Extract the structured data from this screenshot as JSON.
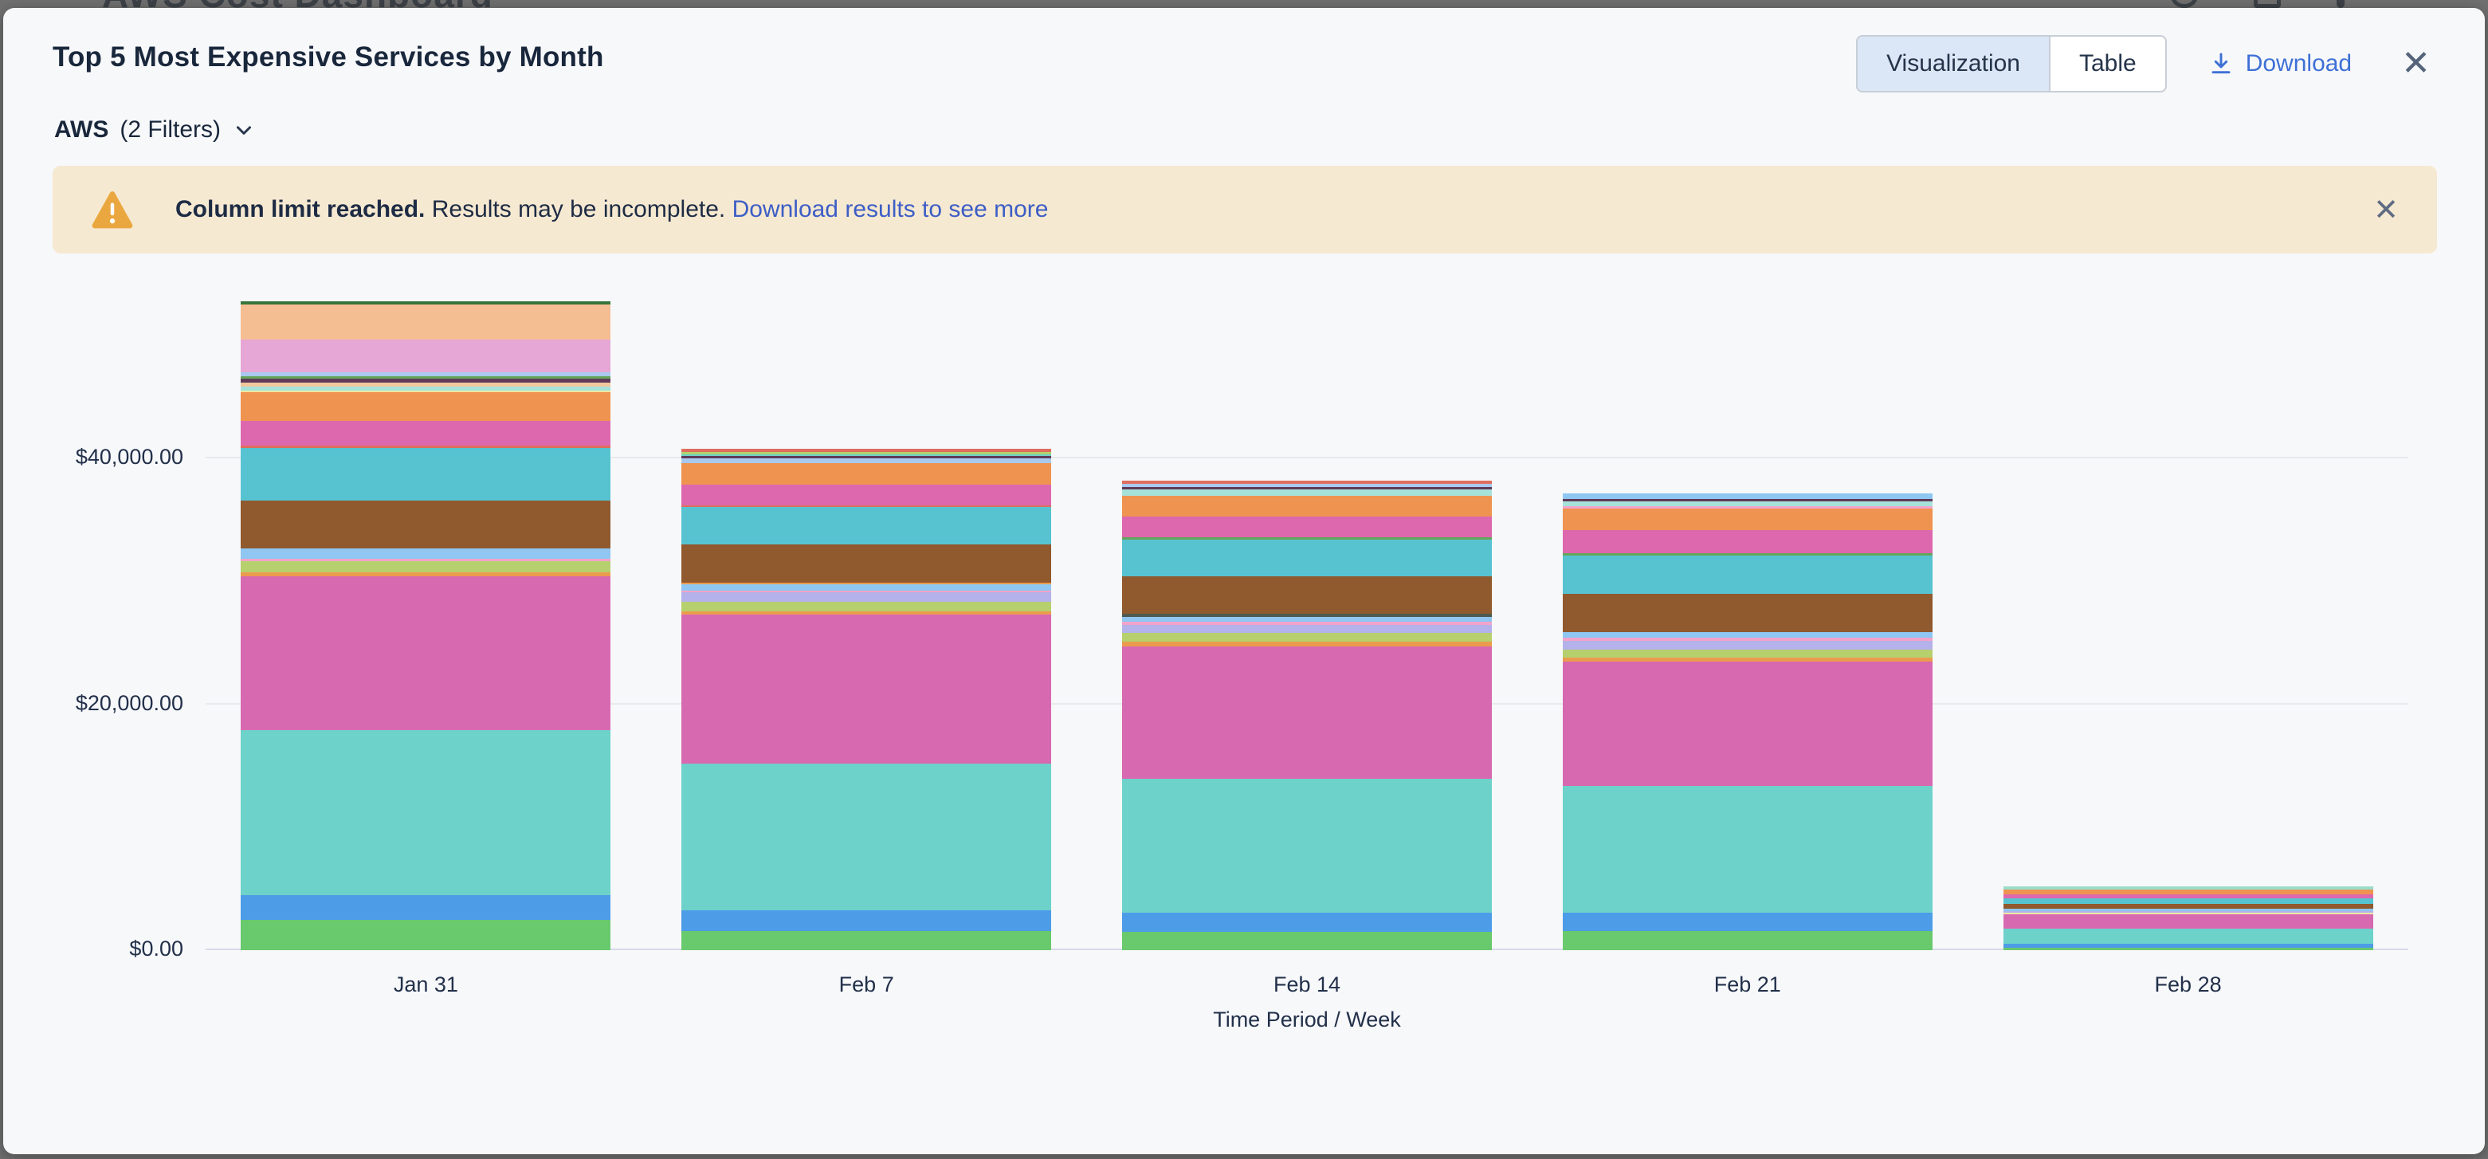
{
  "background": {
    "page_title": "AWS Cost Dashboard"
  },
  "modal": {
    "title": "Top 5 Most Expensive Services by Month",
    "view_toggle": {
      "options": [
        {
          "label": "Visualization",
          "selected": true
        },
        {
          "label": "Table",
          "selected": false
        }
      ]
    },
    "download_label": "Download",
    "filter": {
      "name": "AWS",
      "count_label": "(2 Filters)"
    },
    "banner": {
      "bold_text": "Column limit reached.",
      "text": "Results may be incomplete.",
      "link_text": "Download results to see more"
    }
  },
  "chart_data": {
    "type": "stacked-bar",
    "title": "Top 5 Most Expensive Services by Month",
    "xlabel": "Time Period / Week",
    "ylabel": "",
    "y_axis": {
      "ticks": [
        {
          "value": 0,
          "label": "$0.00"
        },
        {
          "value": 20000,
          "label": "$20,000.00"
        },
        {
          "value": 40000,
          "label": "$40,000.00"
        }
      ],
      "max": 54850
    },
    "legend": "none shown; stacked segments distinguished by color only",
    "categories": [
      "Jan 31",
      "Feb 7",
      "Feb 14",
      "Feb 21",
      "Feb 28"
    ],
    "palette": {
      "dark-green": "#37753b",
      "peach": "#f5bd92",
      "light-pink": "#e6a6d6",
      "light-blue": "#a9c9ee",
      "medium-green": "#64a65c",
      "maroon": "#5f3a58",
      "peach-light": "#f3c79e",
      "pale-cyan": "#a6e2da",
      "pale-yellow": "#ece9a4",
      "orange": "#ef9350",
      "magenta": "#dd68ae",
      "salmon": "#df6e5e",
      "cyan": "#57c3d0",
      "brown": "#90592e",
      "sky-blue": "#8fc6f2",
      "pink": "#f2a3ca",
      "yellow-green": "#b6d06e",
      "orange-dark": "#eb9b4d",
      "orchid": "#d769b1",
      "teal": "#6dd2ca",
      "blue": "#4d9ce8",
      "green": "#68c96d",
      "lavender": "#b5b1ea",
      "dark-slate": "#4f5a51",
      "pale-mint": "#9addc8"
    },
    "segment_order": "top-to-bottom",
    "bars": [
      {
        "category": "Jan 31",
        "total_approx": 52785,
        "segments": [
          {
            "color": "dark-green",
            "value": 260
          },
          {
            "color": "peach",
            "value": 2850
          },
          {
            "color": "light-pink",
            "value": 2660
          },
          {
            "color": "light-blue",
            "value": 325
          },
          {
            "color": "medium-green",
            "value": 195
          },
          {
            "color": "maroon",
            "value": 325
          },
          {
            "color": "peach-light",
            "value": 325
          },
          {
            "color": "pale-cyan",
            "value": 325
          },
          {
            "color": "pale-yellow",
            "value": 130
          },
          {
            "color": "orange",
            "value": 2335
          },
          {
            "color": "magenta",
            "value": 2010
          },
          {
            "color": "salmon",
            "value": 195
          },
          {
            "color": "cyan",
            "value": 4280
          },
          {
            "color": "brown",
            "value": 3890
          },
          {
            "color": "sky-blue",
            "value": 845
          },
          {
            "color": "pink",
            "value": 195
          },
          {
            "color": "yellow-green",
            "value": 910
          },
          {
            "color": "orange-dark",
            "value": 325
          },
          {
            "color": "orchid",
            "value": 12510
          },
          {
            "color": "teal",
            "value": 13420
          },
          {
            "color": "blue",
            "value": 2010
          },
          {
            "color": "green",
            "value": 2465
          }
        ]
      },
      {
        "category": "Feb 7",
        "total_approx": 40785,
        "segments": [
          {
            "color": "salmon",
            "value": 260
          },
          {
            "color": "yellow-green",
            "value": 195
          },
          {
            "color": "teal",
            "value": 130
          },
          {
            "color": "maroon",
            "value": 195
          },
          {
            "color": "light-blue",
            "value": 390
          },
          {
            "color": "orange",
            "value": 1750
          },
          {
            "color": "magenta",
            "value": 1685
          },
          {
            "color": "salmon",
            "value": 130
          },
          {
            "color": "cyan",
            "value": 3045
          },
          {
            "color": "brown",
            "value": 3110
          },
          {
            "color": "orange-dark",
            "value": 130
          },
          {
            "color": "sky-blue",
            "value": 520
          },
          {
            "color": "pink",
            "value": 130
          },
          {
            "color": "lavender",
            "value": 780
          },
          {
            "color": "yellow-green",
            "value": 780
          },
          {
            "color": "orange-dark",
            "value": 260
          },
          {
            "color": "orchid",
            "value": 12125
          },
          {
            "color": "teal",
            "value": 11930
          },
          {
            "color": "blue",
            "value": 1685
          },
          {
            "color": "green",
            "value": 1555
          }
        ]
      },
      {
        "category": "Feb 14",
        "total_approx": 38185,
        "segments": [
          {
            "color": "salmon",
            "value": 260
          },
          {
            "color": "light-blue",
            "value": 260
          },
          {
            "color": "maroon",
            "value": 195
          },
          {
            "color": "pale-cyan",
            "value": 520
          },
          {
            "color": "orange",
            "value": 1685
          },
          {
            "color": "magenta",
            "value": 1685
          },
          {
            "color": "medium-green",
            "value": 195
          },
          {
            "color": "cyan",
            "value": 2980
          },
          {
            "color": "brown",
            "value": 3045
          },
          {
            "color": "dark-slate",
            "value": 260
          },
          {
            "color": "sky-blue",
            "value": 390
          },
          {
            "color": "pink",
            "value": 260
          },
          {
            "color": "lavender",
            "value": 650
          },
          {
            "color": "yellow-green",
            "value": 715
          },
          {
            "color": "orange-dark",
            "value": 390
          },
          {
            "color": "orchid",
            "value": 10760
          },
          {
            "color": "teal",
            "value": 10890
          },
          {
            "color": "blue",
            "value": 1555
          },
          {
            "color": "green",
            "value": 1490
          }
        ]
      },
      {
        "category": "Feb 21",
        "total_approx": 37155,
        "segments": [
          {
            "color": "sky-blue",
            "value": 455
          },
          {
            "color": "maroon",
            "value": 195
          },
          {
            "color": "pale-cyan",
            "value": 390
          },
          {
            "color": "pink",
            "value": 195
          },
          {
            "color": "orange",
            "value": 1750
          },
          {
            "color": "magenta",
            "value": 1880
          },
          {
            "color": "medium-green",
            "value": 195
          },
          {
            "color": "cyan",
            "value": 3110
          },
          {
            "color": "brown",
            "value": 3110
          },
          {
            "color": "sky-blue",
            "value": 455
          },
          {
            "color": "pink",
            "value": 260
          },
          {
            "color": "lavender",
            "value": 715
          },
          {
            "color": "yellow-green",
            "value": 650
          },
          {
            "color": "orange-dark",
            "value": 325
          },
          {
            "color": "orchid",
            "value": 10115
          },
          {
            "color": "teal",
            "value": 10310
          },
          {
            "color": "blue",
            "value": 1490
          },
          {
            "color": "green",
            "value": 1555
          }
        ]
      },
      {
        "category": "Feb 28",
        "total_approx": 5190,
        "segments": [
          {
            "color": "pale-mint",
            "value": 260
          },
          {
            "color": "orange",
            "value": 390
          },
          {
            "color": "magenta",
            "value": 325
          },
          {
            "color": "cyan",
            "value": 455
          },
          {
            "color": "brown",
            "value": 390
          },
          {
            "color": "sky-blue",
            "value": 195
          },
          {
            "color": "lavender",
            "value": 130
          },
          {
            "color": "pale-yellow",
            "value": 130
          },
          {
            "color": "orchid",
            "value": 1165
          },
          {
            "color": "teal",
            "value": 1230
          },
          {
            "color": "blue",
            "value": 325
          },
          {
            "color": "green",
            "value": 195
          }
        ]
      }
    ]
  }
}
